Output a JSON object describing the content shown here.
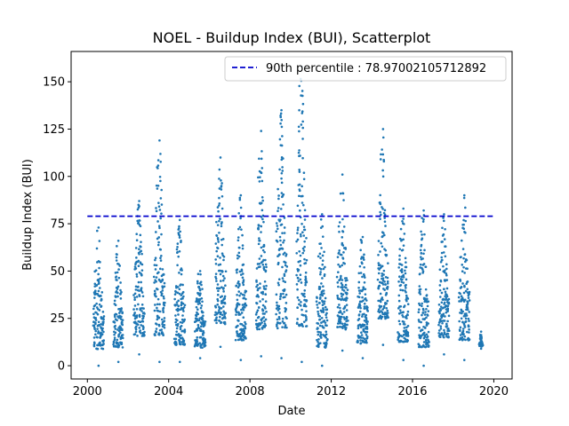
{
  "chart_data": {
    "type": "scatter",
    "title": "NOEL - Buildup Index (BUI), Scatterplot",
    "xlabel": "Date",
    "ylabel": "Buildup Index (BUI)",
    "xlim": [
      1999.2,
      2020.9
    ],
    "ylim": [
      -7,
      166
    ],
    "xticks": [
      2000,
      2004,
      2008,
      2012,
      2016,
      2020
    ],
    "yticks": [
      0,
      25,
      50,
      75,
      100,
      125,
      150
    ],
    "grid": false,
    "legend_position": "top-right",
    "colors": {
      "points": "#1f77b4",
      "reference_line": "#0000cc"
    },
    "reference_line": {
      "label": "90th percentile : 78.97002105712892",
      "value": 78.97002105712892,
      "x_range": [
        2000,
        2020
      ],
      "style": "dashed"
    },
    "season_ranges": [
      {
        "year": 2000,
        "start": 2000.3,
        "end": 2000.8,
        "min": 0,
        "max": 73
      },
      {
        "year": 2001,
        "start": 2001.3,
        "end": 2001.75,
        "min": 2,
        "max": 66
      },
      {
        "year": 2002,
        "start": 2002.3,
        "end": 2002.8,
        "min": 6,
        "max": 87
      },
      {
        "year": 2003,
        "start": 2003.3,
        "end": 2003.8,
        "min": 2,
        "max": 119
      },
      {
        "year": 2004,
        "start": 2004.3,
        "end": 2004.8,
        "min": 2,
        "max": 77
      },
      {
        "year": 2005,
        "start": 2005.3,
        "end": 2005.8,
        "min": 4,
        "max": 50
      },
      {
        "year": 2006,
        "start": 2006.3,
        "end": 2006.8,
        "min": 10,
        "max": 110
      },
      {
        "year": 2007,
        "start": 2007.3,
        "end": 2007.8,
        "min": 3,
        "max": 90
      },
      {
        "year": 2008,
        "start": 2008.3,
        "end": 2008.8,
        "min": 5,
        "max": 124
      },
      {
        "year": 2009,
        "start": 2009.3,
        "end": 2009.8,
        "min": 4,
        "max": 135
      },
      {
        "year": 2010,
        "start": 2010.3,
        "end": 2010.8,
        "min": 2,
        "max": 158
      },
      {
        "year": 2011,
        "start": 2011.3,
        "end": 2011.8,
        "min": 0,
        "max": 80
      },
      {
        "year": 2012,
        "start": 2012.3,
        "end": 2012.8,
        "min": 8,
        "max": 101
      },
      {
        "year": 2013,
        "start": 2013.3,
        "end": 2013.8,
        "min": 4,
        "max": 68
      },
      {
        "year": 2014,
        "start": 2014.3,
        "end": 2014.8,
        "min": 11,
        "max": 125
      },
      {
        "year": 2015,
        "start": 2015.3,
        "end": 2015.8,
        "min": 3,
        "max": 83
      },
      {
        "year": 2016,
        "start": 2016.3,
        "end": 2016.8,
        "min": 0,
        "max": 82
      },
      {
        "year": 2017,
        "start": 2017.3,
        "end": 2017.8,
        "min": 6,
        "max": 80
      },
      {
        "year": 2018,
        "start": 2018.3,
        "end": 2018.8,
        "min": 3,
        "max": 90
      },
      {
        "year": 2019,
        "start": 2019.3,
        "end": 2019.45,
        "min": 9,
        "max": 18
      }
    ]
  }
}
